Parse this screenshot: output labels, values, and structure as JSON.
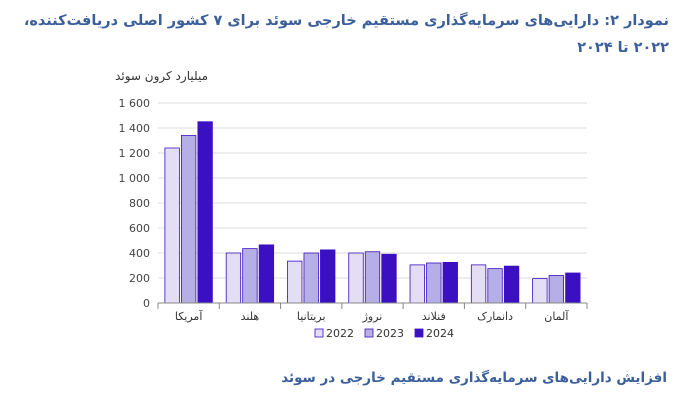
{
  "title": "نمودار ۲: دارایی‌های سرمایه‌گذاری مستقیم خارجی سوئد برای ۷ کشور اصلی دریافت‌کننده، ۲۰۲۲ تا ۲۰۲۴",
  "caption": "افزایش دارایی‌های سرمایه‌گذاری مستقیم خارجی در سوئد",
  "chart_data": {
    "type": "bar",
    "ylabel": "میلیارد کرون سوئد",
    "ylim": [
      0,
      1600
    ],
    "yticks": [
      0,
      200,
      400,
      600,
      800,
      1000,
      1200,
      1400,
      1600
    ],
    "ytick_labels": [
      "0",
      "200",
      "400",
      "600",
      "800",
      "1 000",
      "1 200",
      "1 400",
      "1 600"
    ],
    "categories": [
      "آمریکا",
      "هلند",
      "بریتانیا",
      "نروژ",
      "فنلاند",
      "دانمارک",
      "آلمان"
    ],
    "series": [
      {
        "name": "2022",
        "color": "#e3def4",
        "values": [
          1240,
          400,
          335,
          400,
          305,
          305,
          195
        ]
      },
      {
        "name": "2023",
        "color": "#b6aee6",
        "values": [
          1340,
          435,
          400,
          410,
          320,
          275,
          220
        ]
      },
      {
        "name": "2024",
        "color": "#3a10c2",
        "values": [
          1450,
          465,
          425,
          390,
          325,
          295,
          240
        ]
      }
    ],
    "legend_position": "bottom",
    "grid": true
  }
}
